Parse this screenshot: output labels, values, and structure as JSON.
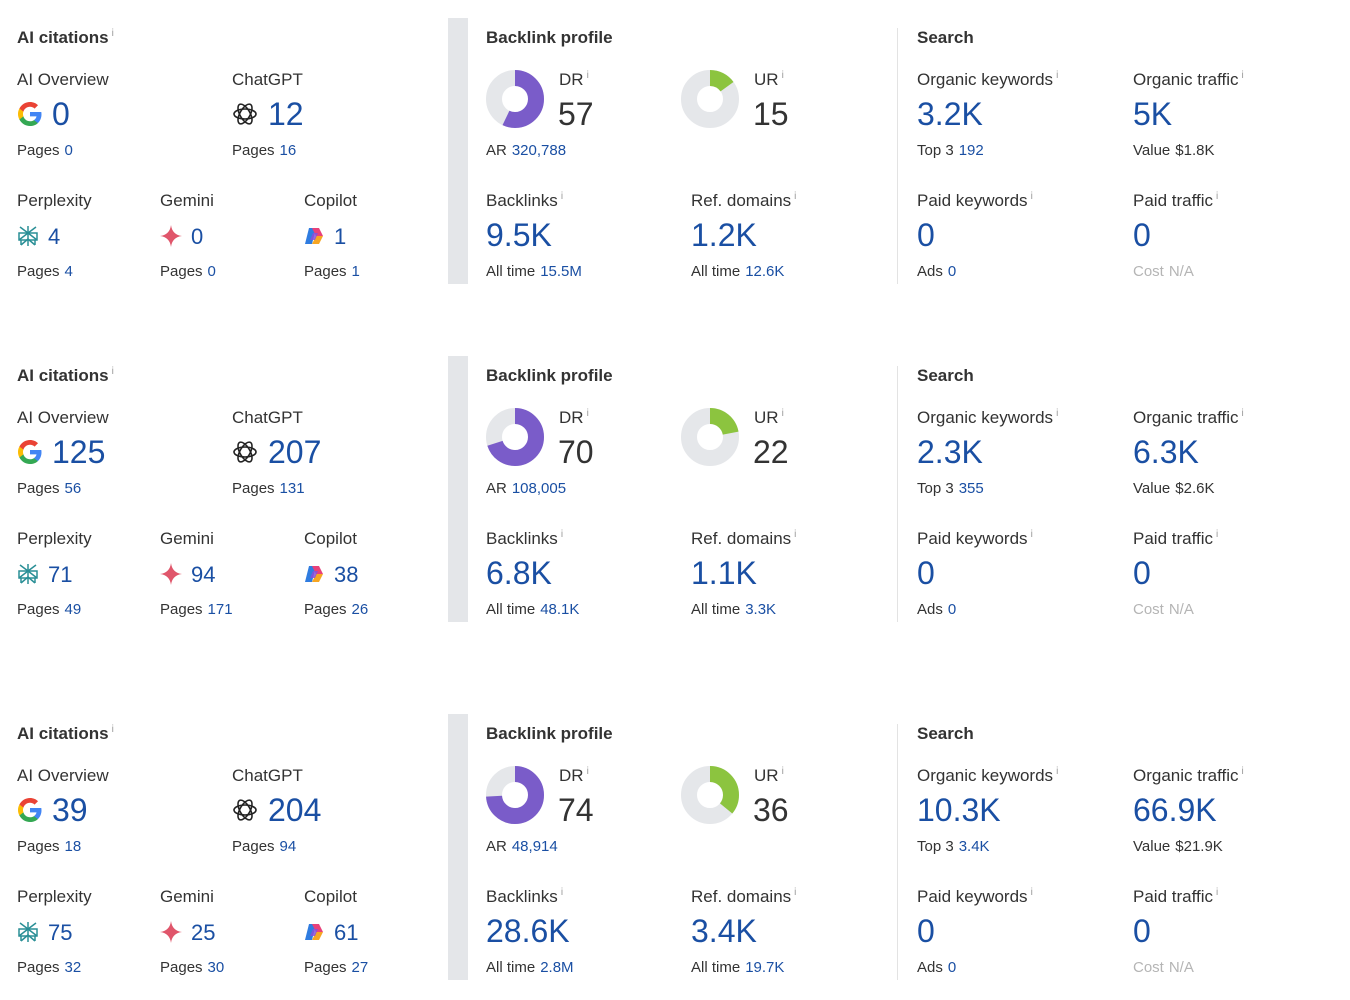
{
  "labels": {
    "ai_citations": "AI citations",
    "ai_overview": "AI Overview",
    "chatgpt": "ChatGPT",
    "perplexity": "Perplexity",
    "gemini": "Gemini",
    "copilot": "Copilot",
    "pages": "Pages",
    "backlink_profile": "Backlink profile",
    "dr": "DR",
    "ur": "UR",
    "ar": "AR",
    "backlinks": "Backlinks",
    "ref_domains": "Ref. domains",
    "all_time": "All time",
    "search": "Search",
    "organic_keywords": "Organic keywords",
    "organic_traffic": "Organic traffic",
    "top3": "Top 3",
    "value": "Value",
    "paid_keywords": "Paid keywords",
    "paid_traffic": "Paid traffic",
    "ads": "Ads",
    "cost": "Cost",
    "info": "i"
  },
  "colors": {
    "accent_blue": "#1a4fa3",
    "dr_purple": "#7a5cc9",
    "ur_green": "#8cc43f",
    "ring_gray": "#e5e7ea"
  },
  "icons": {
    "ai_overview": "google-g-icon",
    "chatgpt": "chatgpt-icon",
    "perplexity": "perplexity-icon",
    "gemini": "gemini-star-icon",
    "copilot": "copilot-icon",
    "dr": "dr-donut-icon",
    "ur": "ur-donut-icon"
  },
  "rows": [
    {
      "ai": {
        "overview": {
          "value": "0",
          "pages": "0"
        },
        "chatgpt": {
          "value": "12",
          "pages": "16"
        },
        "perplexity": {
          "value": "4",
          "pages": "4"
        },
        "gemini": {
          "value": "0",
          "pages": "0"
        },
        "copilot": {
          "value": "1",
          "pages": "1"
        }
      },
      "backlink": {
        "dr": "57",
        "dr_fraction": 0.57,
        "ur": "15",
        "ur_fraction": 0.15,
        "ar": "320,788",
        "backlinks": "9.5K",
        "backlinks_all_time": "15.5M",
        "ref_domains": "1.2K",
        "ref_domains_all_time": "12.6K"
      },
      "search": {
        "organic_keywords": "3.2K",
        "top3": "192",
        "organic_traffic": "5K",
        "value": "$1.8K",
        "paid_keywords": "0",
        "ads": "0",
        "paid_traffic": "0",
        "cost": "N/A"
      }
    },
    {
      "ai": {
        "overview": {
          "value": "125",
          "pages": "56"
        },
        "chatgpt": {
          "value": "207",
          "pages": "131"
        },
        "perplexity": {
          "value": "71",
          "pages": "49"
        },
        "gemini": {
          "value": "94",
          "pages": "171"
        },
        "copilot": {
          "value": "38",
          "pages": "26"
        }
      },
      "backlink": {
        "dr": "70",
        "dr_fraction": 0.7,
        "ur": "22",
        "ur_fraction": 0.22,
        "ar": "108,005",
        "backlinks": "6.8K",
        "backlinks_all_time": "48.1K",
        "ref_domains": "1.1K",
        "ref_domains_all_time": "3.3K"
      },
      "search": {
        "organic_keywords": "2.3K",
        "top3": "355",
        "organic_traffic": "6.3K",
        "value": "$2.6K",
        "paid_keywords": "0",
        "ads": "0",
        "paid_traffic": "0",
        "cost": "N/A"
      }
    },
    {
      "ai": {
        "overview": {
          "value": "39",
          "pages": "18"
        },
        "chatgpt": {
          "value": "204",
          "pages": "94"
        },
        "perplexity": {
          "value": "75",
          "pages": "32"
        },
        "gemini": {
          "value": "25",
          "pages": "30"
        },
        "copilot": {
          "value": "61",
          "pages": "27"
        }
      },
      "backlink": {
        "dr": "74",
        "dr_fraction": 0.74,
        "ur": "36",
        "ur_fraction": 0.36,
        "ar": "48,914",
        "backlinks": "28.6K",
        "backlinks_all_time": "2.8M",
        "ref_domains": "3.4K",
        "ref_domains_all_time": "19.7K"
      },
      "search": {
        "organic_keywords": "10.3K",
        "top3": "3.4K",
        "organic_traffic": "66.9K",
        "value": "$21.9K",
        "paid_keywords": "0",
        "ads": "0",
        "paid_traffic": "0",
        "cost": "N/A"
      }
    }
  ]
}
